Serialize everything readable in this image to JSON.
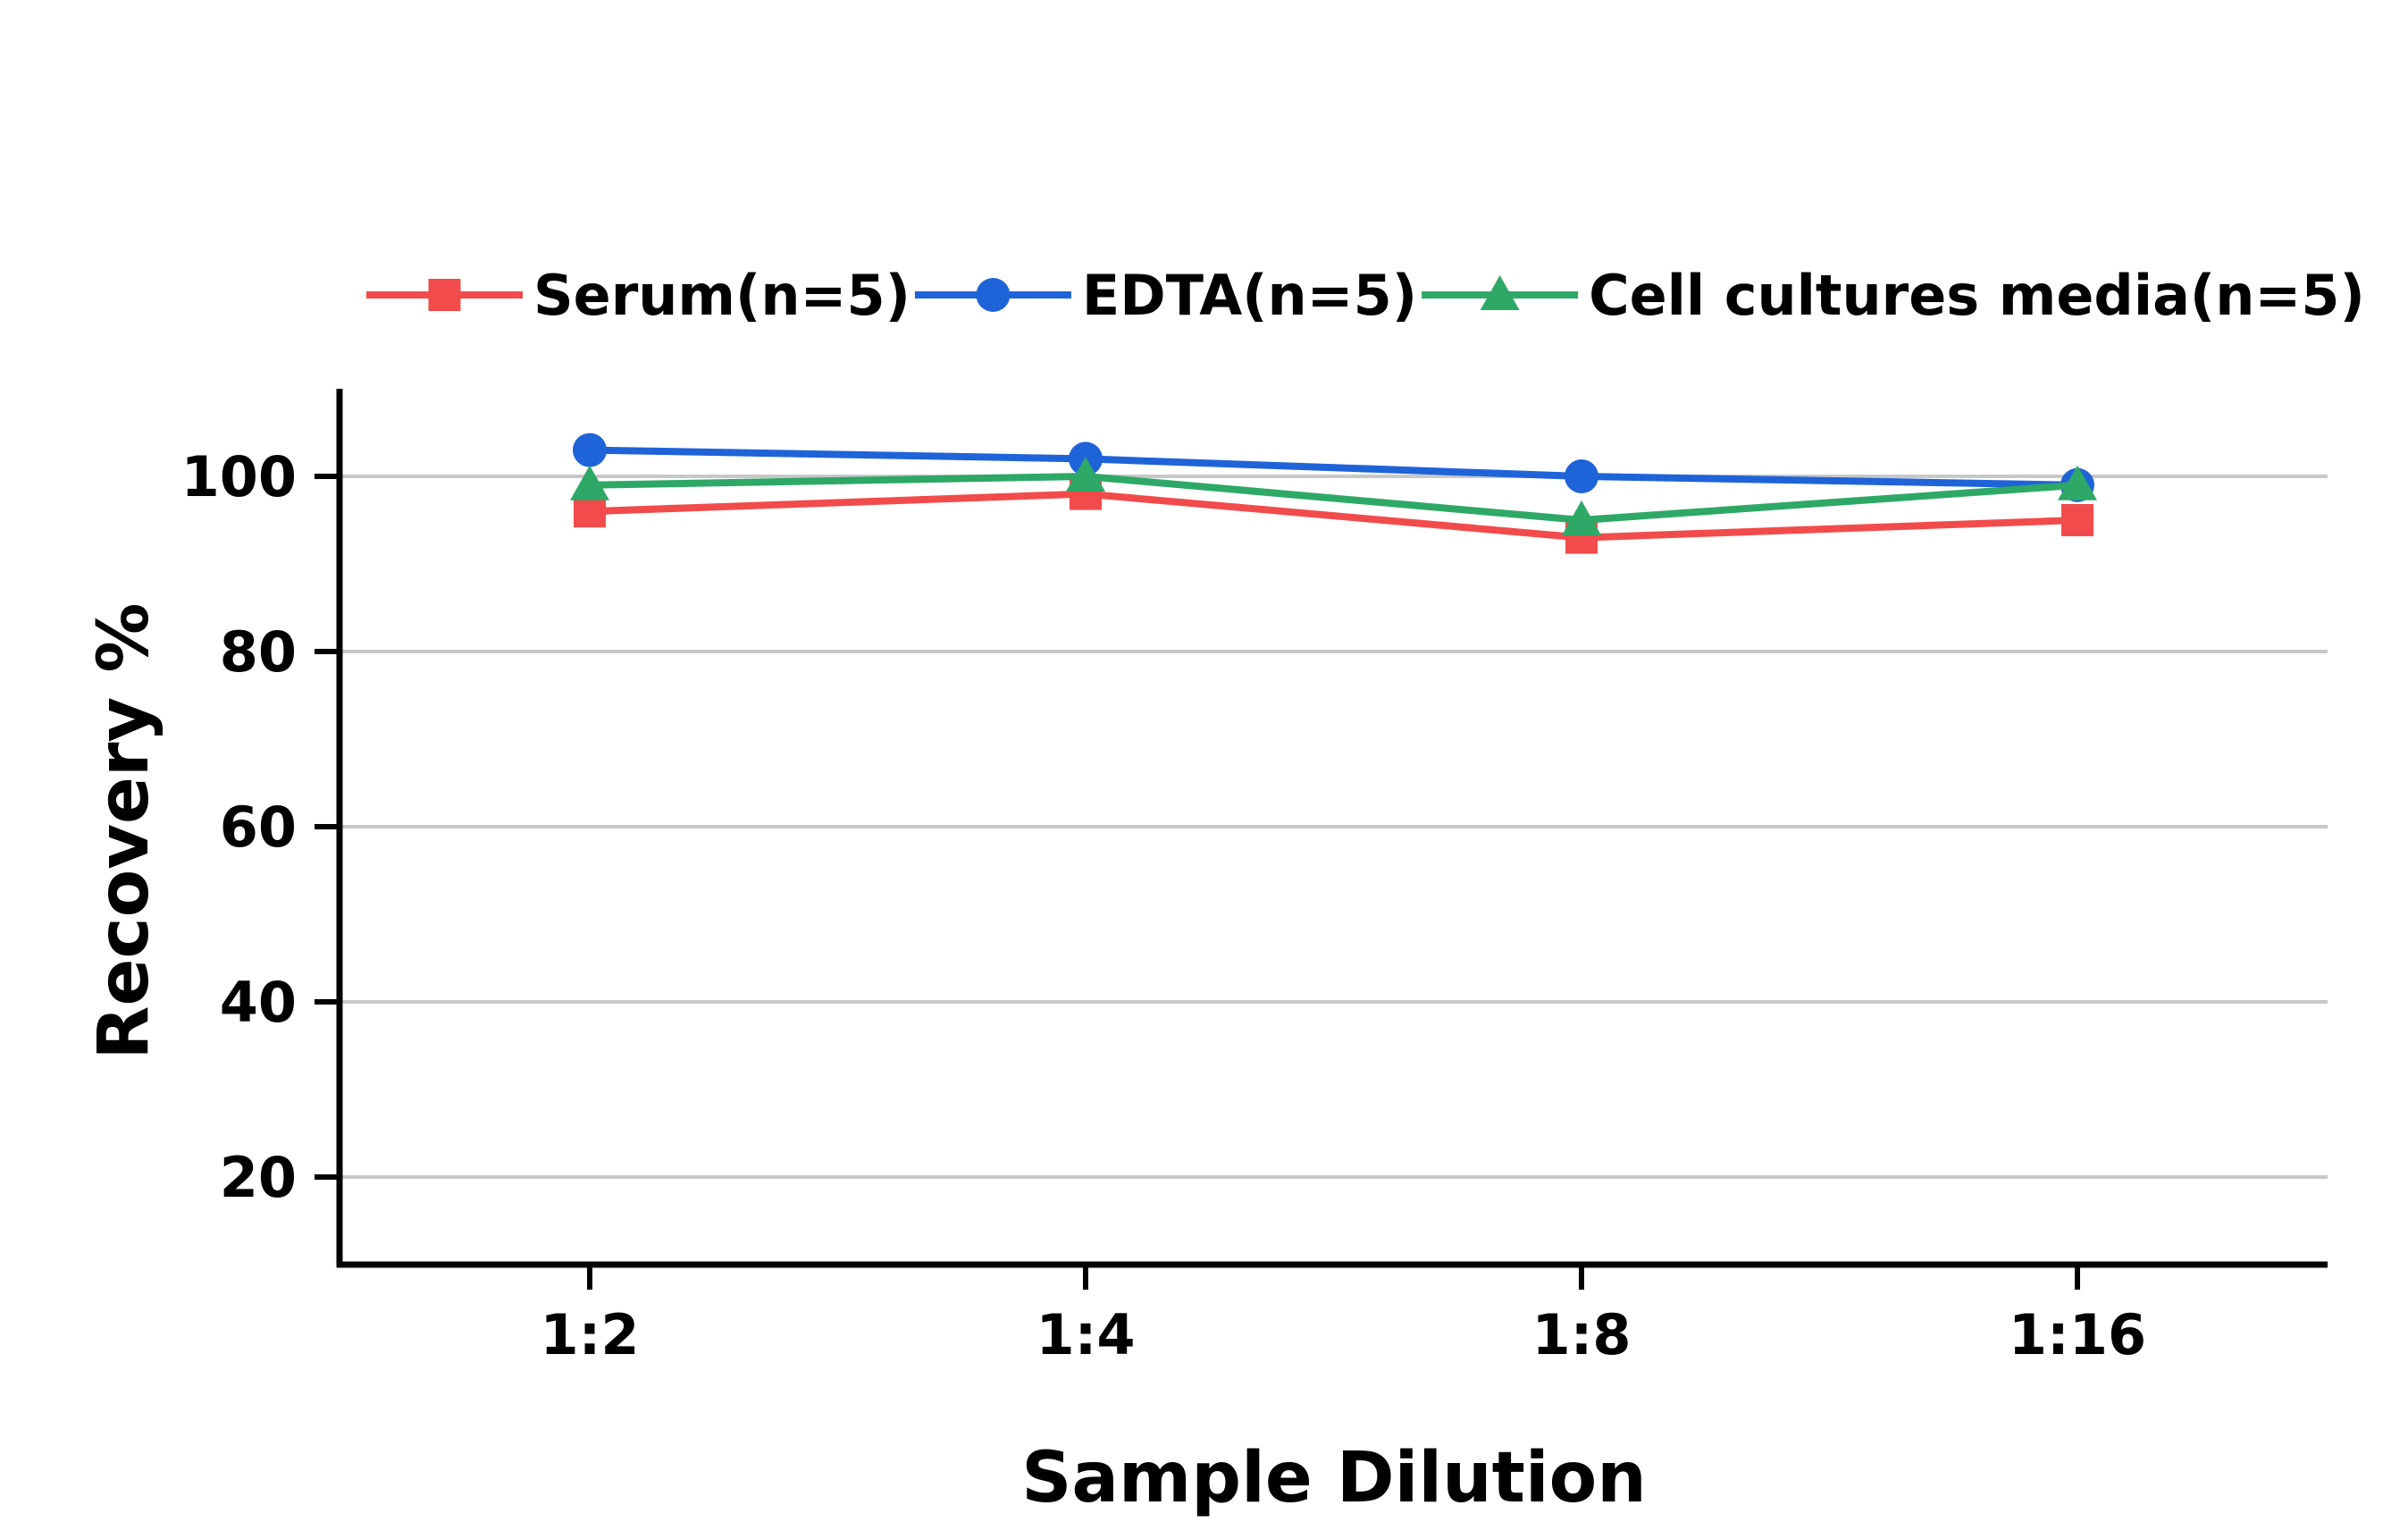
{
  "chart_data": {
    "type": "line",
    "title": "",
    "xlabel": "Sample Dilution",
    "ylabel": "Recovery %",
    "categories": [
      "1:2",
      "1:4",
      "1:8",
      "1:16"
    ],
    "y_ticks": [
      20,
      40,
      60,
      80,
      100
    ],
    "ylim": [
      10,
      110
    ],
    "grid": true,
    "legend_position": "top",
    "series": [
      {
        "name": "Serum(n=5)",
        "values": [
          96,
          98,
          93,
          95
        ],
        "color": "#f24b4b",
        "marker": "square"
      },
      {
        "name": "EDTA(n=5)",
        "values": [
          103,
          102,
          100,
          99
        ],
        "color": "#1f63d8",
        "marker": "circle"
      },
      {
        "name": "Cell cultures media(n=5)",
        "values": [
          99,
          100,
          95,
          99
        ],
        "color": "#2ea866",
        "marker": "triangle"
      }
    ]
  }
}
